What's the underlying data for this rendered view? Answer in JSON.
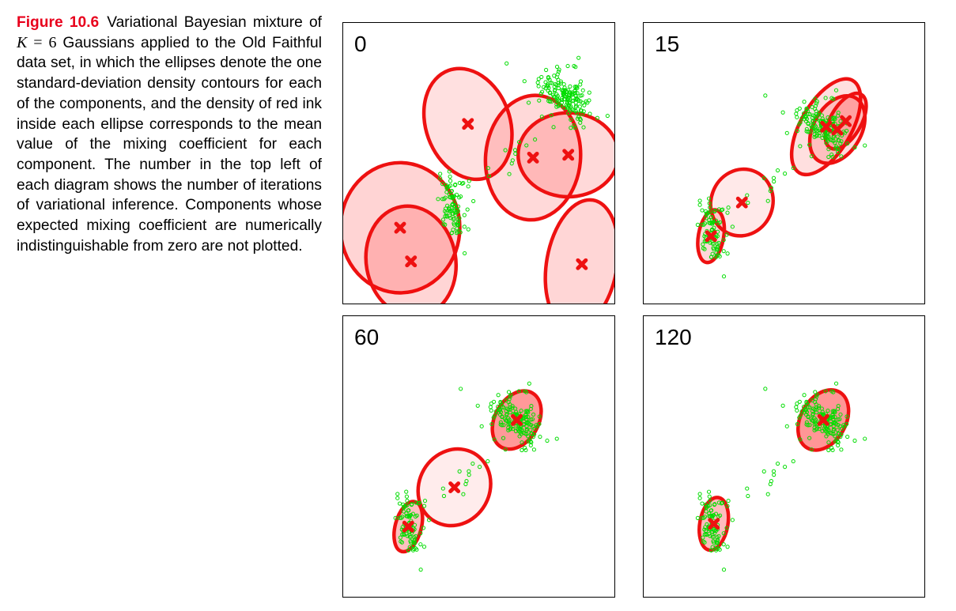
{
  "caption": {
    "figure_label": "Figure 10.6",
    "text_before_math": "Variational Bayesian mixture of",
    "math_var": "K",
    "math_equals": "=",
    "math_value": "6",
    "text_after_math": "Gaussians applied to the Old Faithful data set, in which the ellipses denote the one standard-deviation density contours for each of the components, and the density of red ink inside each ellipse corresponds to the mean value of the mixing coefficient for each component. The number in the top left of each diagram shows the number of iterations of variational inference. Components whose expected mixing coefficient are numerically indistinguishable from zero are not plotted."
  },
  "colors": {
    "caption_label": "#e8001c",
    "ellipse_stroke": "#ee1111",
    "ellipse_fill": "#ff0000",
    "data_point": "#00dd00",
    "mean_marker": "#ee1111"
  },
  "panels": [
    {
      "iteration_label": "0",
      "components": [
        {
          "mean": [
            0.46,
            0.36
          ],
          "radii": [
            0.155,
            0.21
          ],
          "angle_deg": -20,
          "mixing": 0.11
        },
        {
          "mean": [
            0.7,
            0.48
          ],
          "radii": [
            0.175,
            0.23
          ],
          "angle_deg": 5,
          "mixing": 0.16
        },
        {
          "mean": [
            0.88,
            0.86
          ],
          "radii": [
            0.13,
            0.24
          ],
          "angle_deg": 10,
          "mixing": 0.18
        },
        {
          "mean": [
            0.83,
            0.47
          ],
          "radii": [
            0.185,
            0.155
          ],
          "angle_deg": 0,
          "mixing": 0.16
        },
        {
          "mean": [
            0.21,
            0.73
          ],
          "radii": [
            0.22,
            0.24
          ],
          "angle_deg": 0,
          "mixing": 0.2
        },
        {
          "mean": [
            0.25,
            0.85
          ],
          "radii": [
            0.165,
            0.205
          ],
          "angle_deg": -10,
          "mixing": 0.19
        }
      ]
    },
    {
      "iteration_label": "15",
      "components": [
        {
          "mean": [
            0.65,
            0.37
          ],
          "radii": [
            0.09,
            0.19
          ],
          "angle_deg": 30,
          "mixing": 0.12
        },
        {
          "mean": [
            0.69,
            0.38
          ],
          "radii": [
            0.085,
            0.13
          ],
          "angle_deg": 30,
          "mixing": 0.15
        },
        {
          "mean": [
            0.72,
            0.35
          ],
          "radii": [
            0.055,
            0.11
          ],
          "angle_deg": 30,
          "mixing": 0.17
        },
        {
          "mean": [
            0.35,
            0.64
          ],
          "radii": [
            0.11,
            0.12
          ],
          "angle_deg": 20,
          "mixing": 0.05
        },
        {
          "mean": [
            0.24,
            0.76
          ],
          "radii": [
            0.045,
            0.095
          ],
          "angle_deg": 10,
          "mixing": 0.16
        }
      ]
    },
    {
      "iteration_label": "60",
      "components": [
        {
          "mean": [
            0.64,
            0.37
          ],
          "radii": [
            0.08,
            0.115
          ],
          "angle_deg": 30,
          "mixing": 0.62
        },
        {
          "mean": [
            0.41,
            0.61
          ],
          "radii": [
            0.13,
            0.145
          ],
          "angle_deg": 30,
          "mixing": 0.03
        },
        {
          "mean": [
            0.24,
            0.75
          ],
          "radii": [
            0.048,
            0.095
          ],
          "angle_deg": 15,
          "mixing": 0.34
        }
      ]
    },
    {
      "iteration_label": "120",
      "components": [
        {
          "mean": [
            0.64,
            0.37
          ],
          "radii": [
            0.08,
            0.115
          ],
          "angle_deg": 30,
          "mixing": 0.64
        },
        {
          "mean": [
            0.25,
            0.74
          ],
          "radii": [
            0.05,
            0.095
          ],
          "angle_deg": 10,
          "mixing": 0.36
        }
      ]
    }
  ]
}
